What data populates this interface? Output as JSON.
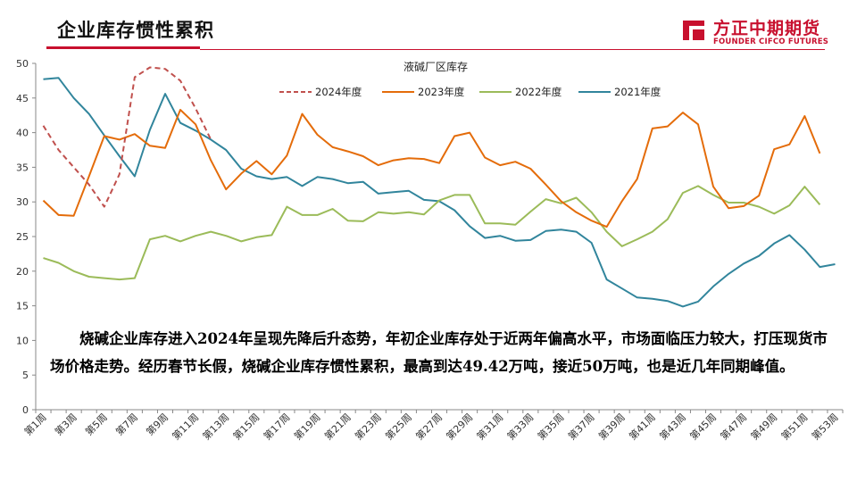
{
  "header": {
    "title": "企业库存惯性累积",
    "logo_cn": "方正中期期货",
    "logo_en": "FOUNDER CIFCO FUTURES",
    "accent": "#c8102e"
  },
  "annotation": "烧碱企业库存进入2024年呈现先降后升态势，年初企业库存处于近两年偏高水平，市场面临压力较大，打压现货市场价格走势。经历春节长假，烧碱企业库存惯性累积，最高到达49.42万吨，接近50万吨，也是近几年同期峰值。",
  "chart_data": {
    "type": "line",
    "title": "液碱厂区库存",
    "ylim": [
      0,
      50
    ],
    "yticks": [
      0,
      5,
      10,
      15,
      20,
      25,
      30,
      35,
      40,
      45,
      50
    ],
    "xlabels": [
      "第1周",
      "第3周",
      "第5周",
      "第7周",
      "第9周",
      "第11周",
      "第13周",
      "第15周",
      "第17周",
      "第19周",
      "第21周",
      "第23周",
      "第25周",
      "第27周",
      "第29周",
      "第31周",
      "第33周",
      "第35周",
      "第37周",
      "第39周",
      "第41周",
      "第43周",
      "第45周",
      "第47周",
      "第49周",
      "第51周",
      "第53周"
    ],
    "legend_position": "top",
    "series": [
      {
        "name": "2024年度",
        "color": "#c0504d",
        "dash": true,
        "values": [
          41.0,
          37.5,
          35.0,
          32.5,
          29.3,
          34.0,
          48.0,
          49.42,
          49.2,
          47.5,
          43.5,
          39.0
        ]
      },
      {
        "name": "2023年度",
        "color": "#e46c0a",
        "dash": false,
        "values": [
          30.2,
          28.1,
          28.0,
          33.7,
          39.5,
          39.0,
          39.8,
          38.1,
          37.8,
          43.3,
          41.2,
          36.0,
          31.8,
          34.1,
          35.9,
          34.0,
          36.7,
          42.7,
          39.7,
          37.9,
          37.3,
          36.6,
          35.3,
          36.0,
          36.3,
          36.2,
          35.6,
          39.5,
          40.0,
          36.4,
          35.3,
          35.8,
          34.8,
          32.5,
          30.1,
          28.5,
          27.3,
          26.4,
          30.1,
          33.3,
          40.6,
          40.9,
          42.9,
          41.2,
          32.2,
          29.1,
          29.4,
          30.9,
          37.6,
          38.3,
          42.4,
          37.0
        ]
      },
      {
        "name": "2022年度",
        "color": "#9bbb59",
        "dash": false,
        "values": [
          21.9,
          21.2,
          20.0,
          19.2,
          19.0,
          18.8,
          19.0,
          24.6,
          25.1,
          24.3,
          25.1,
          25.7,
          25.1,
          24.3,
          24.9,
          25.2,
          29.3,
          28.1,
          28.1,
          29.0,
          27.3,
          27.2,
          28.5,
          28.3,
          28.5,
          28.2,
          30.2,
          31.0,
          31.0,
          26.9,
          26.9,
          26.7,
          28.6,
          30.4,
          29.8,
          30.6,
          28.5,
          25.7,
          23.6,
          24.6,
          25.7,
          27.5,
          31.3,
          32.3,
          31.0,
          29.9,
          29.9,
          29.3,
          28.3,
          29.5,
          32.2,
          29.6
        ]
      },
      {
        "name": "2021年度",
        "color": "#31859c",
        "dash": false,
        "values": [
          47.7,
          47.9,
          45.0,
          42.7,
          39.6,
          36.6,
          33.7,
          40.4,
          45.6,
          41.4,
          40.3,
          39.0,
          37.5,
          34.8,
          33.7,
          33.3,
          33.6,
          32.3,
          33.6,
          33.3,
          32.7,
          32.9,
          31.2,
          31.4,
          31.6,
          30.3,
          30.1,
          28.8,
          26.5,
          24.8,
          25.1,
          24.4,
          24.5,
          25.8,
          26.0,
          25.7,
          24.1,
          18.8,
          17.5,
          16.2,
          16.0,
          15.7,
          14.9,
          15.6,
          17.8,
          19.6,
          21.1,
          22.2,
          24.0,
          25.2,
          23.1,
          20.6,
          21.0
        ]
      }
    ]
  }
}
